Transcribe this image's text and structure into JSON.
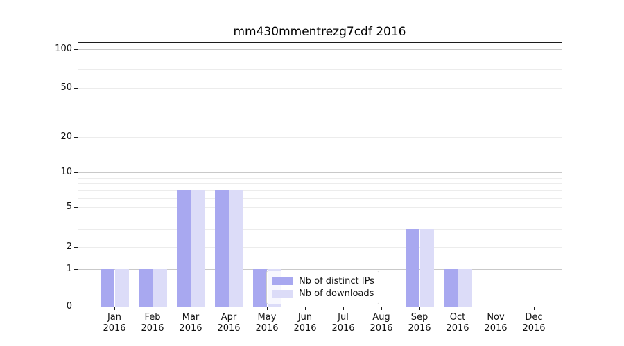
{
  "figure": {
    "title": "mm430mmentrezg7cdf 2016",
    "background": "#ffffff"
  },
  "chart_data": {
    "type": "bar",
    "title": "mm430mmentrezg7cdf 2016",
    "x_categories": [
      {
        "month": "Jan",
        "year": "2016"
      },
      {
        "month": "Feb",
        "year": "2016"
      },
      {
        "month": "Mar",
        "year": "2016"
      },
      {
        "month": "Apr",
        "year": "2016"
      },
      {
        "month": "May",
        "year": "2016"
      },
      {
        "month": "Jun",
        "year": "2016"
      },
      {
        "month": "Jul",
        "year": "2016"
      },
      {
        "month": "Aug",
        "year": "2016"
      },
      {
        "month": "Sep",
        "year": "2016"
      },
      {
        "month": "Oct",
        "year": "2016"
      },
      {
        "month": "Nov",
        "year": "2016"
      },
      {
        "month": "Dec",
        "year": "2016"
      }
    ],
    "series": [
      {
        "name": "Nb of distinct IPs",
        "color": "#a8a8f0",
        "values": [
          1,
          1,
          7,
          7,
          1,
          0,
          0,
          0,
          3,
          1,
          0,
          0
        ]
      },
      {
        "name": "Nb of downloads",
        "color": "#dcdcf8",
        "values": [
          1,
          1,
          7,
          7,
          1,
          0,
          0,
          0,
          3,
          1,
          0,
          0
        ]
      }
    ],
    "y_axis": {
      "scale": "log-like",
      "tick_values": [
        100,
        50,
        20,
        10,
        5,
        2,
        1,
        0
      ],
      "major_grid_values": [
        1,
        10,
        100
      ],
      "minor_grid_values": [
        2,
        3,
        4,
        5,
        6,
        7,
        8,
        9,
        20,
        30,
        40,
        50,
        60,
        70,
        80,
        90
      ],
      "ylim": [
        0,
        112
      ]
    },
    "legend": {
      "entries": [
        "Nb of distinct IPs",
        "Nb of downloads"
      ],
      "position": "inside-lower-center"
    },
    "grid": "horizontal",
    "colors": {
      "major_grid": "#c9c9c9",
      "minor_grid": "#ececec",
      "axis": "#1c1c1c",
      "text": "#111111"
    }
  }
}
